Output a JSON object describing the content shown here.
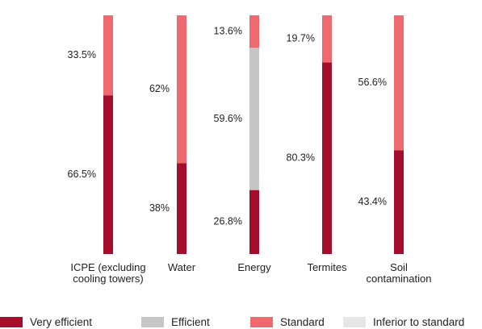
{
  "chart_data": {
    "type": "stacked_bar",
    "categories": [
      "ICPE (excluding cooling towers)",
      "Water",
      "Energy",
      "Termites",
      "Soil contamination"
    ],
    "series": [
      {
        "name": "Very efficient",
        "color": "#a50d2d",
        "values": [
          66.5,
          38,
          26.8,
          80.3,
          43.4
        ],
        "value_labels": [
          "66.5%",
          "38%",
          "26.8%",
          "80.3%",
          "43.4%"
        ]
      },
      {
        "name": "Efficient",
        "color": "#c6c6c6",
        "values": [
          null,
          null,
          59.6,
          null,
          null
        ],
        "value_labels": [
          null,
          null,
          "59.6%",
          null,
          null
        ]
      },
      {
        "name": "Standard",
        "color": "#ee6a6f",
        "values": [
          33.5,
          62,
          13.6,
          19.7,
          56.6
        ],
        "value_labels": [
          "33.5%",
          "62%",
          "13.6%",
          "19.7%",
          "56.6%"
        ]
      },
      {
        "name": "Inferior to standard",
        "color": "#e6e6e6",
        "values": [
          null,
          null,
          null,
          null,
          null
        ]
      }
    ]
  }
}
